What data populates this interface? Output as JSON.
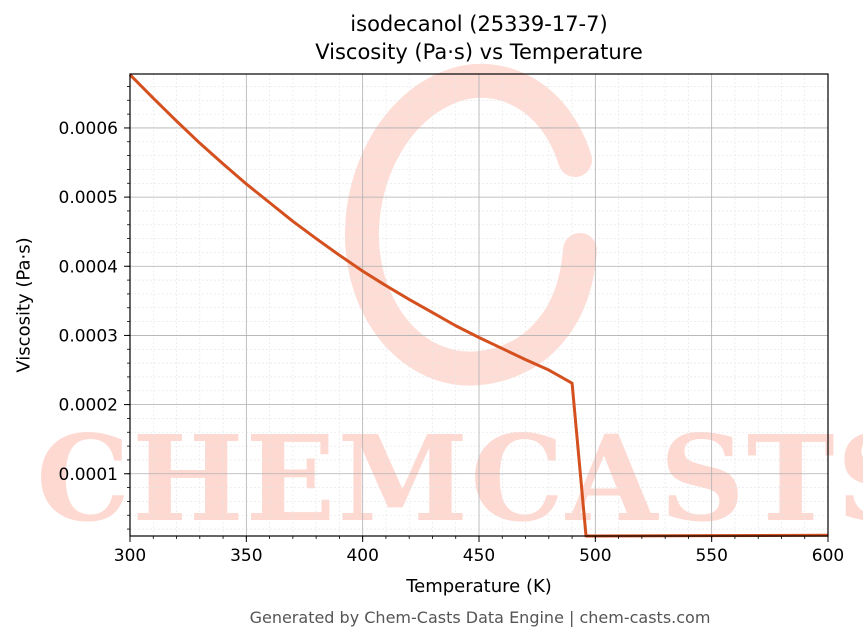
{
  "chart_data": {
    "type": "line",
    "title": "isodecanol (25339-17-7)",
    "subtitle": "Viscosity (Pa·s) vs Temperature",
    "xlabel": "Temperature (K)",
    "ylabel": "Viscosity (Pa·s)",
    "xlim": [
      300,
      600
    ],
    "ylim": [
      1e-05,
      0.000678
    ],
    "x_ticks": [
      300,
      350,
      400,
      450,
      500,
      550,
      600
    ],
    "x_tick_labels": [
      "300",
      "350",
      "400",
      "450",
      "500",
      "550",
      "600"
    ],
    "y_ticks": [
      0.0001,
      0.0002,
      0.0003,
      0.0004,
      0.0005,
      0.0006
    ],
    "y_tick_labels": [
      "0.0001",
      "0.0002",
      "0.0003",
      "0.0004",
      "0.0005",
      "0.0006"
    ],
    "grid": true,
    "series": [
      {
        "color": "#d4501e",
        "x": [
          300,
          310,
          320,
          330,
          340,
          350,
          360,
          370,
          380,
          390,
          400,
          410,
          420,
          430,
          440,
          450,
          460,
          470,
          480,
          490,
          496,
          500,
          550,
          600
        ],
        "y": [
          0.000677,
          0.000643,
          0.00061,
          0.000578,
          0.000548,
          0.000519,
          0.000492,
          0.000465,
          0.00044,
          0.000416,
          0.000393,
          0.000372,
          0.000352,
          0.000333,
          0.000314,
          0.000297,
          0.000281,
          0.000265,
          0.00025,
          0.000231,
          1e-05,
          1e-05,
          1.05e-05,
          1.1e-05
        ]
      }
    ]
  },
  "watermark": {
    "text": "CHEMCASTS",
    "color": "#fdd9d2"
  },
  "footer": "Generated by Chem-Casts Data Engine | chem-casts.com"
}
